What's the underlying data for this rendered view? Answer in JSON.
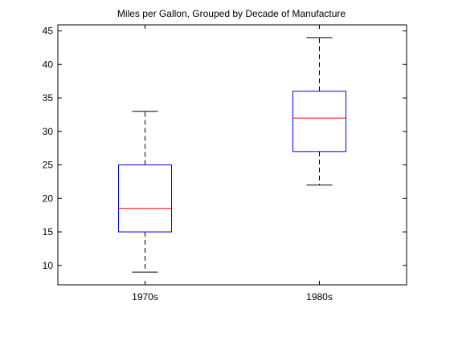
{
  "chart_data": {
    "type": "boxplot",
    "title": "Miles per Gallon, Grouped by Decade of Manufacture",
    "xlabel": "",
    "ylabel": "",
    "categories": [
      "1970s",
      "1980s"
    ],
    "boxes": [
      {
        "label": "1970s",
        "whisker_low": 9,
        "q1": 15,
        "median": 18.5,
        "q3": 25,
        "whisker_high": 33
      },
      {
        "label": "1980s",
        "whisker_low": 22,
        "q1": 27,
        "median": 32,
        "q3": 36,
        "whisker_high": 44
      }
    ],
    "ylim": [
      7.1,
      45.9
    ],
    "yticks": [
      10,
      15,
      20,
      25,
      30,
      35,
      40,
      45
    ],
    "grid": false,
    "colors": {
      "box": "#0000ff",
      "median": "#ff0000",
      "whisker": "#000000",
      "axes": "#000000"
    }
  }
}
